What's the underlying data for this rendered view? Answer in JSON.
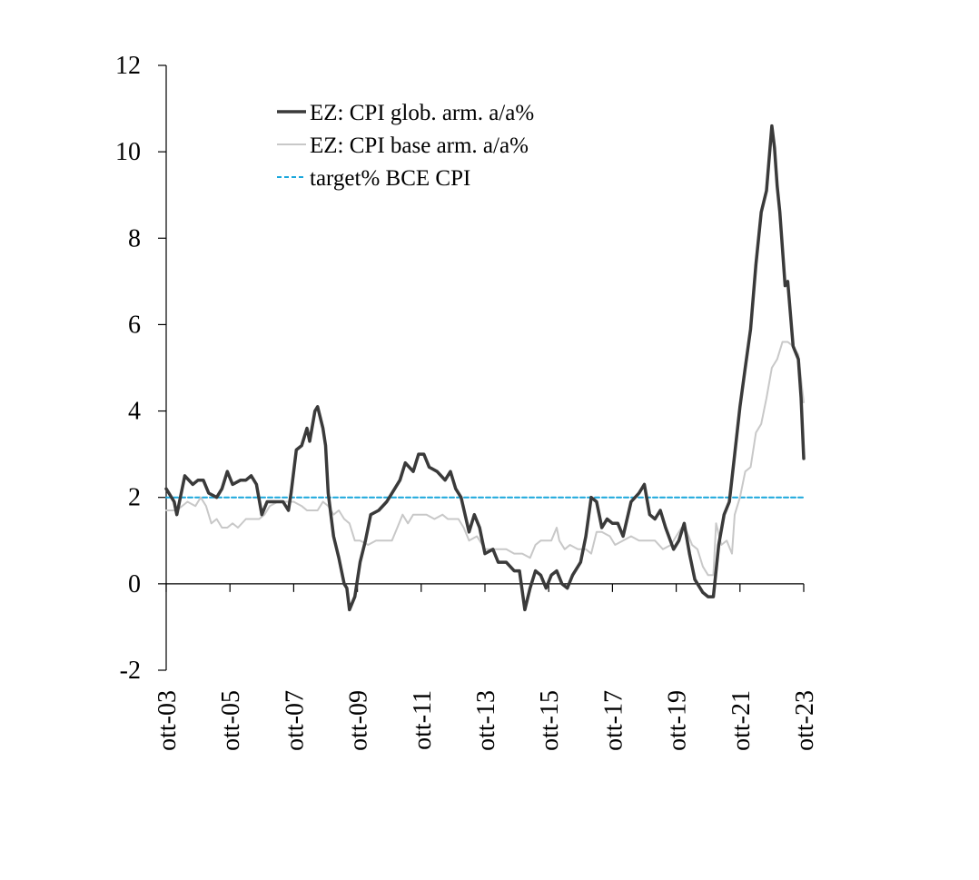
{
  "chart_data": {
    "type": "line",
    "title": "",
    "xlabel": "",
    "ylabel": "",
    "ylim": [
      -2,
      12
    ],
    "yticks": [
      -2,
      0,
      2,
      4,
      6,
      8,
      10,
      12
    ],
    "xlim": [
      "2003-10",
      "2023-10"
    ],
    "xticks": [
      "ott-03",
      "ott-05",
      "ott-07",
      "ott-09",
      "ott-11",
      "ott-13",
      "ott-15",
      "ott-17",
      "ott-19",
      "ott-21",
      "ott-23"
    ],
    "grid": false,
    "legend_position": "top-left",
    "colors": {
      "headline": "#3a3a3a",
      "core": "#c8c8c8",
      "target": "#1aa7dc"
    },
    "series": [
      {
        "name": "EZ: CPI glob. arm. a/a%",
        "style": "solid-dark",
        "points": [
          [
            "2003-10",
            2.2
          ],
          [
            "2004-01",
            1.9
          ],
          [
            "2004-02",
            1.6
          ],
          [
            "2004-05",
            2.5
          ],
          [
            "2004-08",
            2.3
          ],
          [
            "2004-10",
            2.4
          ],
          [
            "2004-12",
            2.4
          ],
          [
            "2005-02",
            2.1
          ],
          [
            "2005-05",
            2.0
          ],
          [
            "2005-07",
            2.2
          ],
          [
            "2005-09",
            2.6
          ],
          [
            "2005-11",
            2.3
          ],
          [
            "2006-02",
            2.4
          ],
          [
            "2006-04",
            2.4
          ],
          [
            "2006-06",
            2.5
          ],
          [
            "2006-08",
            2.3
          ],
          [
            "2006-10",
            1.6
          ],
          [
            "2006-12",
            1.9
          ],
          [
            "2007-03",
            1.9
          ],
          [
            "2007-06",
            1.9
          ],
          [
            "2007-08",
            1.7
          ],
          [
            "2007-09",
            2.1
          ],
          [
            "2007-11",
            3.1
          ],
          [
            "2008-01",
            3.2
          ],
          [
            "2008-03",
            3.6
          ],
          [
            "2008-04",
            3.3
          ],
          [
            "2008-06",
            4.0
          ],
          [
            "2008-07",
            4.1
          ],
          [
            "2008-09",
            3.6
          ],
          [
            "2008-10",
            3.2
          ],
          [
            "2008-11",
            2.1
          ],
          [
            "2009-01",
            1.1
          ],
          [
            "2009-03",
            0.6
          ],
          [
            "2009-05",
            0.0
          ],
          [
            "2009-06",
            -0.1
          ],
          [
            "2009-07",
            -0.6
          ],
          [
            "2009-09",
            -0.3
          ],
          [
            "2009-11",
            0.5
          ],
          [
            "2010-01",
            1.0
          ],
          [
            "2010-03",
            1.6
          ],
          [
            "2010-06",
            1.7
          ],
          [
            "2010-09",
            1.9
          ],
          [
            "2010-12",
            2.2
          ],
          [
            "2011-02",
            2.4
          ],
          [
            "2011-04",
            2.8
          ],
          [
            "2011-07",
            2.6
          ],
          [
            "2011-09",
            3.0
          ],
          [
            "2011-11",
            3.0
          ],
          [
            "2012-01",
            2.7
          ],
          [
            "2012-04",
            2.6
          ],
          [
            "2012-07",
            2.4
          ],
          [
            "2012-09",
            2.6
          ],
          [
            "2012-11",
            2.2
          ],
          [
            "2013-01",
            2.0
          ],
          [
            "2013-04",
            1.2
          ],
          [
            "2013-06",
            1.6
          ],
          [
            "2013-08",
            1.3
          ],
          [
            "2013-10",
            0.7
          ],
          [
            "2014-01",
            0.8
          ],
          [
            "2014-03",
            0.5
          ],
          [
            "2014-06",
            0.5
          ],
          [
            "2014-09",
            0.3
          ],
          [
            "2014-11",
            0.3
          ],
          [
            "2015-01",
            -0.6
          ],
          [
            "2015-03",
            -0.1
          ],
          [
            "2015-05",
            0.3
          ],
          [
            "2015-07",
            0.2
          ],
          [
            "2015-09",
            -0.1
          ],
          [
            "2015-11",
            0.2
          ],
          [
            "2016-01",
            0.3
          ],
          [
            "2016-03",
            0.0
          ],
          [
            "2016-05",
            -0.1
          ],
          [
            "2016-07",
            0.2
          ],
          [
            "2016-10",
            0.5
          ],
          [
            "2016-12",
            1.1
          ],
          [
            "2017-02",
            2.0
          ],
          [
            "2017-04",
            1.9
          ],
          [
            "2017-06",
            1.3
          ],
          [
            "2017-08",
            1.5
          ],
          [
            "2017-10",
            1.4
          ],
          [
            "2017-12",
            1.4
          ],
          [
            "2018-02",
            1.1
          ],
          [
            "2018-05",
            1.9
          ],
          [
            "2018-08",
            2.1
          ],
          [
            "2018-10",
            2.3
          ],
          [
            "2018-12",
            1.6
          ],
          [
            "2019-02",
            1.5
          ],
          [
            "2019-04",
            1.7
          ],
          [
            "2019-06",
            1.3
          ],
          [
            "2019-09",
            0.8
          ],
          [
            "2019-11",
            1.0
          ],
          [
            "2020-01",
            1.4
          ],
          [
            "2020-03",
            0.7
          ],
          [
            "2020-05",
            0.1
          ],
          [
            "2020-08",
            -0.2
          ],
          [
            "2020-10",
            -0.3
          ],
          [
            "2020-12",
            -0.3
          ],
          [
            "2021-02",
            0.9
          ],
          [
            "2021-04",
            1.6
          ],
          [
            "2021-06",
            1.9
          ],
          [
            "2021-08",
            3.0
          ],
          [
            "2021-10",
            4.1
          ],
          [
            "2021-12",
            5.0
          ],
          [
            "2022-02",
            5.9
          ],
          [
            "2022-04",
            7.4
          ],
          [
            "2022-06",
            8.6
          ],
          [
            "2022-08",
            9.1
          ],
          [
            "2022-10",
            10.6
          ],
          [
            "2022-11",
            10.1
          ],
          [
            "2022-12",
            9.2
          ],
          [
            "2023-01",
            8.6
          ],
          [
            "2023-03",
            6.9
          ],
          [
            "2023-04",
            7.0
          ],
          [
            "2023-06",
            5.5
          ],
          [
            "2023-08",
            5.2
          ],
          [
            "2023-09",
            4.3
          ],
          [
            "2023-10",
            2.9
          ]
        ]
      },
      {
        "name": "EZ: CPI base arm. a/a%",
        "style": "solid-light",
        "points": [
          [
            "2003-10",
            1.7
          ],
          [
            "2004-02",
            1.7
          ],
          [
            "2004-06",
            1.9
          ],
          [
            "2004-09",
            1.8
          ],
          [
            "2004-11",
            2.0
          ],
          [
            "2005-01",
            1.8
          ],
          [
            "2005-03",
            1.4
          ],
          [
            "2005-05",
            1.5
          ],
          [
            "2005-07",
            1.3
          ],
          [
            "2005-09",
            1.3
          ],
          [
            "2005-11",
            1.4
          ],
          [
            "2006-01",
            1.3
          ],
          [
            "2006-04",
            1.5
          ],
          [
            "2006-06",
            1.5
          ],
          [
            "2006-09",
            1.5
          ],
          [
            "2006-11",
            1.6
          ],
          [
            "2007-01",
            1.8
          ],
          [
            "2007-04",
            1.9
          ],
          [
            "2007-07",
            1.9
          ],
          [
            "2007-10",
            1.9
          ],
          [
            "2008-01",
            1.8
          ],
          [
            "2008-03",
            1.7
          ],
          [
            "2008-05",
            1.7
          ],
          [
            "2008-07",
            1.7
          ],
          [
            "2008-09",
            1.9
          ],
          [
            "2008-11",
            1.8
          ],
          [
            "2009-01",
            1.6
          ],
          [
            "2009-03",
            1.7
          ],
          [
            "2009-05",
            1.5
          ],
          [
            "2009-07",
            1.4
          ],
          [
            "2009-09",
            1.0
          ],
          [
            "2009-11",
            1.0
          ],
          [
            "2010-02",
            0.9
          ],
          [
            "2010-05",
            1.0
          ],
          [
            "2010-08",
            1.0
          ],
          [
            "2010-11",
            1.0
          ],
          [
            "2011-01",
            1.3
          ],
          [
            "2011-03",
            1.6
          ],
          [
            "2011-05",
            1.4
          ],
          [
            "2011-07",
            1.6
          ],
          [
            "2011-09",
            1.6
          ],
          [
            "2011-12",
            1.6
          ],
          [
            "2012-03",
            1.5
          ],
          [
            "2012-06",
            1.6
          ],
          [
            "2012-08",
            1.5
          ],
          [
            "2012-10",
            1.5
          ],
          [
            "2012-12",
            1.5
          ],
          [
            "2013-02",
            1.3
          ],
          [
            "2013-04",
            1.0
          ],
          [
            "2013-07",
            1.1
          ],
          [
            "2013-10",
            0.8
          ],
          [
            "2014-01",
            0.8
          ],
          [
            "2014-03",
            0.8
          ],
          [
            "2014-06",
            0.8
          ],
          [
            "2014-09",
            0.7
          ],
          [
            "2014-12",
            0.7
          ],
          [
            "2015-03",
            0.6
          ],
          [
            "2015-05",
            0.9
          ],
          [
            "2015-07",
            1.0
          ],
          [
            "2015-09",
            1.0
          ],
          [
            "2015-11",
            1.0
          ],
          [
            "2016-01",
            1.3
          ],
          [
            "2016-02",
            1.0
          ],
          [
            "2016-04",
            0.8
          ],
          [
            "2016-06",
            0.9
          ],
          [
            "2016-09",
            0.8
          ],
          [
            "2016-12",
            0.8
          ],
          [
            "2017-02",
            0.7
          ],
          [
            "2017-04",
            1.2
          ],
          [
            "2017-06",
            1.2
          ],
          [
            "2017-09",
            1.1
          ],
          [
            "2017-11",
            0.9
          ],
          [
            "2018-02",
            1.0
          ],
          [
            "2018-05",
            1.1
          ],
          [
            "2018-08",
            1.0
          ],
          [
            "2018-11",
            1.0
          ],
          [
            "2019-02",
            1.0
          ],
          [
            "2019-05",
            0.8
          ],
          [
            "2019-08",
            0.9
          ],
          [
            "2019-10",
            1.1
          ],
          [
            "2019-12",
            1.3
          ],
          [
            "2020-02",
            1.2
          ],
          [
            "2020-04",
            0.9
          ],
          [
            "2020-06",
            0.8
          ],
          [
            "2020-08",
            0.4
          ],
          [
            "2020-10",
            0.2
          ],
          [
            "2020-12",
            0.2
          ],
          [
            "2021-01",
            1.4
          ],
          [
            "2021-03",
            0.9
          ],
          [
            "2021-05",
            1.0
          ],
          [
            "2021-07",
            0.7
          ],
          [
            "2021-08",
            1.6
          ],
          [
            "2021-10",
            2.0
          ],
          [
            "2021-12",
            2.6
          ],
          [
            "2022-02",
            2.7
          ],
          [
            "2022-04",
            3.5
          ],
          [
            "2022-06",
            3.7
          ],
          [
            "2022-08",
            4.3
          ],
          [
            "2022-10",
            5.0
          ],
          [
            "2022-12",
            5.2
          ],
          [
            "2023-02",
            5.6
          ],
          [
            "2023-04",
            5.6
          ],
          [
            "2023-06",
            5.5
          ],
          [
            "2023-08",
            5.3
          ],
          [
            "2023-10",
            4.2
          ]
        ]
      },
      {
        "name": "target% BCE CPI",
        "style": "dashed",
        "points": [
          [
            "2003-10",
            2.0
          ],
          [
            "2023-10",
            2.0
          ]
        ]
      }
    ]
  }
}
